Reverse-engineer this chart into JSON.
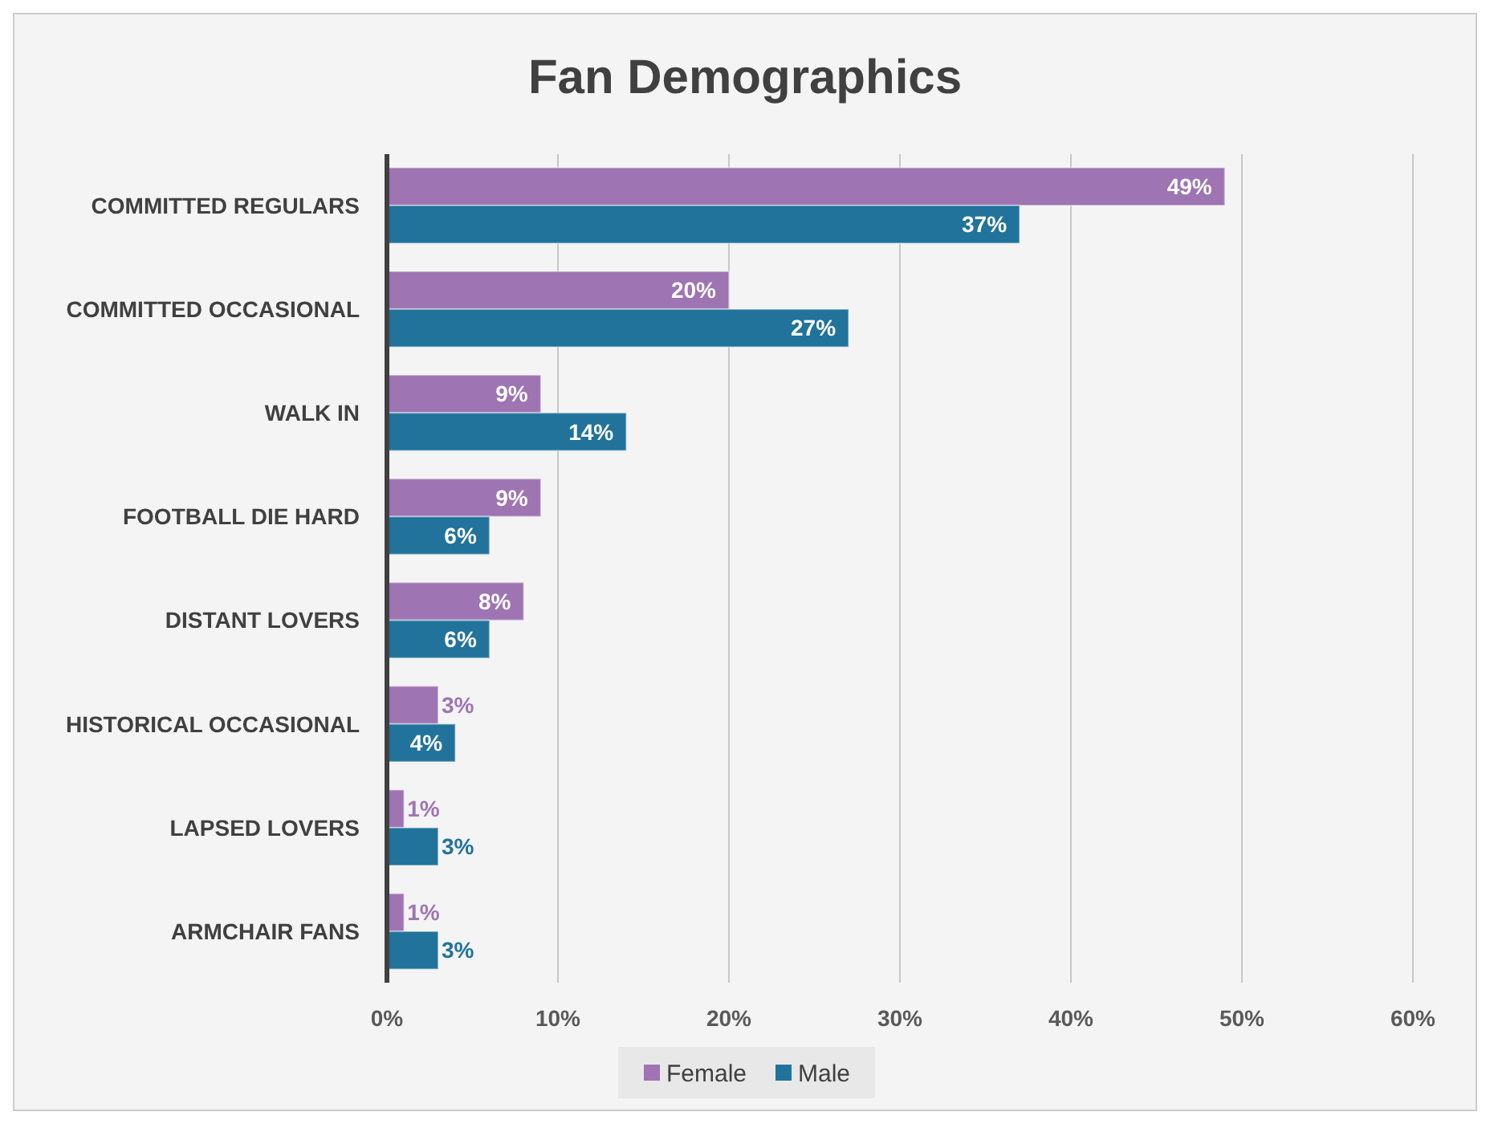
{
  "chart_data": {
    "type": "bar",
    "orientation": "horizontal",
    "title": "Fan Demographics",
    "categories": [
      "COMMITTED REGULARS",
      "COMMITTED OCCASIONAL",
      "WALK IN",
      "FOOTBALL DIE HARD",
      "DISTANT LOVERS",
      "HISTORICAL OCCASIONAL",
      "LAPSED LOVERS",
      "ARMCHAIR FANS"
    ],
    "series": [
      {
        "name": "Female",
        "color": "#9e74b3",
        "values": [
          49,
          20,
          9,
          9,
          8,
          3,
          1,
          1
        ],
        "value_labels": [
          "49%",
          "20%",
          "9%",
          "9%",
          "8%",
          "3%",
          "1%",
          "1%"
        ]
      },
      {
        "name": "Male",
        "color": "#21739b",
        "values": [
          37,
          27,
          14,
          6,
          6,
          4,
          3,
          3
        ],
        "value_labels": [
          "37%",
          "27%",
          "14%",
          "6%",
          "6%",
          "4%",
          "3%",
          "3%"
        ]
      }
    ],
    "xlim": [
      0,
      60
    ],
    "xticks": [
      {
        "value": 0,
        "label": "0%"
      },
      {
        "value": 10,
        "label": "10%"
      },
      {
        "value": 20,
        "label": "20%"
      },
      {
        "value": 30,
        "label": "30%"
      },
      {
        "value": 40,
        "label": "40%"
      },
      {
        "value": 50,
        "label": "50%"
      },
      {
        "value": 60,
        "label": "60%"
      }
    ],
    "grid": "x",
    "legend": "bottom"
  }
}
